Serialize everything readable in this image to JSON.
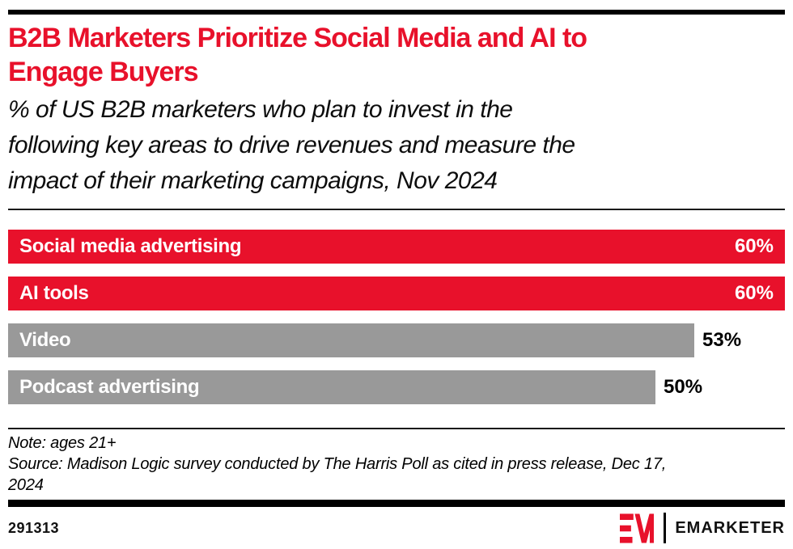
{
  "accent_color": "#E8112B",
  "header": {
    "title_line1": "B2B Marketers Prioritize Social Media and AI to",
    "title_line2": "Engage Buyers",
    "title_color": "#E8112B",
    "subtitle_lines": [
      "% of US B2B marketers who plan to invest in the",
      "following key areas to drive revenues and measure the",
      "impact of their marketing campaigns, Nov 2024"
    ]
  },
  "chart_data": {
    "type": "bar",
    "orientation": "horizontal",
    "title": "B2B Marketers Prioritize Social Media and AI to Engage Buyers",
    "subtitle": "% of US B2B marketers who plan to invest in the following key areas to drive revenues and measure the impact of their marketing campaigns, Nov 2024",
    "categories": [
      "Social media advertising",
      "AI tools",
      "Video",
      "Podcast advertising"
    ],
    "values": [
      60,
      60,
      53,
      50
    ],
    "value_labels": [
      "60%",
      "60%",
      "53%",
      "50%"
    ],
    "unit": "%",
    "scale_max": 60,
    "bar_colors": [
      "#E8112B",
      "#E8112B",
      "#999999",
      "#999999"
    ],
    "grid": false,
    "legend": false
  },
  "notes": {
    "lines": [
      "Note: ages 21+",
      "Source: Madison Logic survey conducted by The Harris Poll as cited in press release, Dec 17,",
      "2024"
    ]
  },
  "footer": {
    "chart_id": "291313",
    "brand_name": "EMARKETER",
    "logo_color": "#E8112B"
  }
}
